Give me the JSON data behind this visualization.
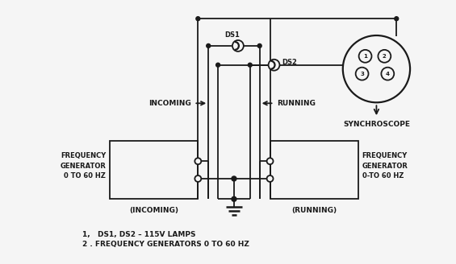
{
  "bg_color": "#f5f5f5",
  "line_color": "#1a1a1a",
  "annotations": {
    "incoming_label": "INCOMING",
    "running_label": "RUNNING",
    "synchroscope_label": "SYNCHROSCOPE",
    "ds1_label": "DS1",
    "ds2_label": "DS2",
    "freq_gen_left_lines": [
      "FREQUENCY",
      "GENERATOR",
      "0 TO 60 HZ"
    ],
    "freq_gen_right_lines": [
      "FREQUENCY",
      "GENERATOR",
      "0-TO 60 HZ"
    ],
    "incoming_bottom": "(INCOMING)",
    "running_bottom": "(RUNNING)",
    "note1": "1,   DS1, DS2 – 115V LAMPS",
    "note2": "2 . FREQUENCY GENERATORS 0 TO 60 HZ"
  },
  "layout": {
    "figsize": [
      5.65,
      3.28
    ],
    "dpi": 100,
    "xlim": [
      0,
      565
    ],
    "ylim": [
      0,
      328
    ]
  }
}
